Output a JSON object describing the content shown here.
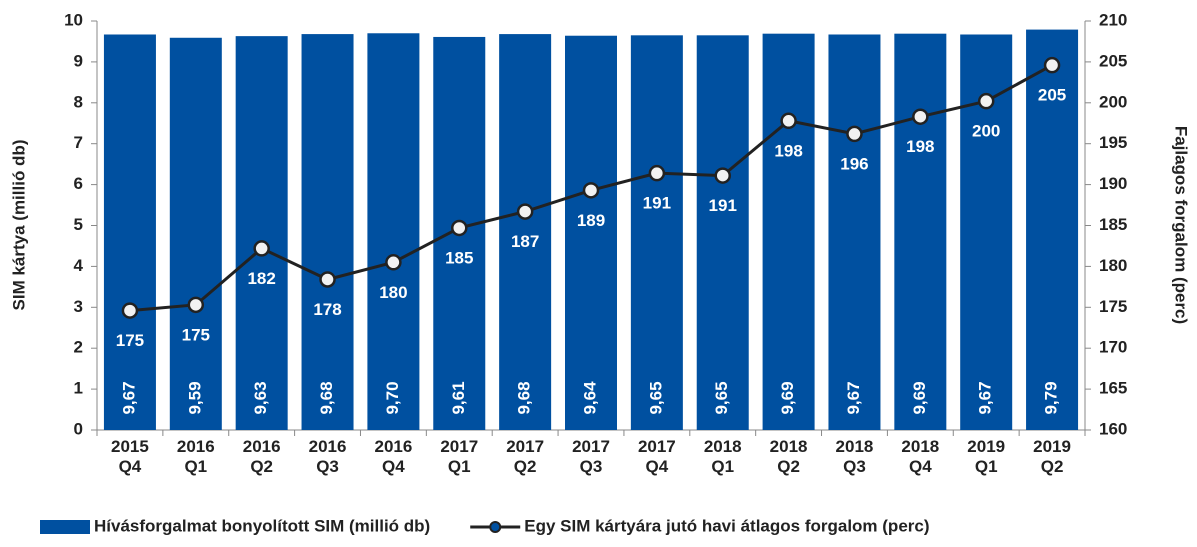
{
  "chart_data": {
    "type": "bar",
    "categories": [
      "2015 Q4",
      "2016 Q1",
      "2016 Q2",
      "2016 Q3",
      "2016 Q4",
      "2017 Q1",
      "2017 Q2",
      "2017 Q3",
      "2017 Q4",
      "2018 Q1",
      "2018 Q2",
      "2018 Q3",
      "2018 Q4",
      "2019 Q1",
      "2019 Q2"
    ],
    "series": [
      {
        "name": "Hívásforgalmat bonyolított SIM (millió db)",
        "type": "bar",
        "color": "#0050a0",
        "values": [
          9.67,
          9.59,
          9.63,
          9.68,
          9.7,
          9.61,
          9.68,
          9.64,
          9.65,
          9.65,
          9.69,
          9.67,
          9.69,
          9.67,
          9.79
        ],
        "value_labels": [
          "9,67",
          "9,59",
          "9,63",
          "9,68",
          "9,70",
          "9,61",
          "9,68",
          "9,64",
          "9,65",
          "9,65",
          "9,69",
          "9,67",
          "9,69",
          "9,67",
          "9,79"
        ]
      },
      {
        "name": "Egy SIM kártyára jutó havi átlagos forgalom (perc)",
        "type": "line",
        "axis": "y2",
        "color": "#222222",
        "values": [
          174.6,
          175.3,
          182.2,
          178.4,
          180.5,
          184.7,
          186.7,
          189.3,
          191.4,
          191.1,
          197.8,
          196.2,
          198.3,
          200.2,
          204.6
        ],
        "value_labels": [
          "175",
          "175",
          "182",
          "178",
          "180",
          "185",
          "187",
          "189",
          "191",
          "191",
          "198",
          "196",
          "198",
          "200",
          "205"
        ]
      }
    ],
    "ylabel": "SIM kártya (millió db)",
    "y2label": "Fajlagos forgalom (perc)",
    "ylim": [
      0,
      10
    ],
    "yticks": [
      0,
      1,
      2,
      3,
      4,
      5,
      6,
      7,
      8,
      9,
      10
    ],
    "y2lim": [
      160,
      210
    ],
    "y2ticks": [
      160,
      165,
      170,
      175,
      180,
      185,
      190,
      195,
      200,
      205,
      210
    ],
    "legend": "bottom",
    "grid": false
  }
}
